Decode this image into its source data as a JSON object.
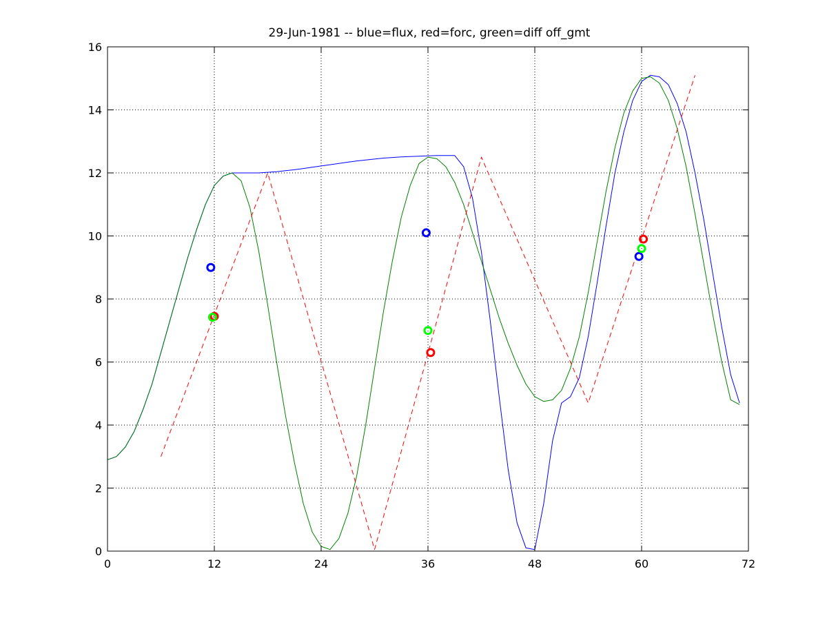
{
  "chart_data": {
    "type": "line",
    "title": "29-Jun-1981 -- blue=flux, red=forc, green=diff off_gmt",
    "xlabel": "",
    "ylabel": "",
    "xlim": [
      0,
      72
    ],
    "ylim": [
      0,
      16
    ],
    "xticks": [
      0,
      12,
      24,
      36,
      48,
      60,
      72
    ],
    "yticks": [
      0,
      2,
      4,
      6,
      8,
      10,
      12,
      14,
      16
    ],
    "grid": true,
    "colors": {
      "flux": "#0000ff",
      "forc": "#ff0000",
      "diff": "#008000",
      "diff_marker": "#00ff00"
    },
    "series": [
      {
        "key": "flux",
        "style": "solid",
        "x": [
          0,
          1,
          2,
          3,
          4,
          5,
          6,
          7,
          8,
          9,
          10,
          11,
          12,
          13,
          14,
          15,
          16,
          17,
          18,
          19,
          20,
          21,
          22,
          23,
          24,
          25,
          26,
          27,
          28,
          29,
          30,
          31,
          32,
          33,
          34,
          35,
          36,
          37,
          38,
          39,
          40,
          41,
          42,
          43,
          44,
          45,
          46,
          47,
          48,
          49,
          50,
          51,
          52,
          53,
          54,
          55,
          56,
          57,
          58,
          59,
          60,
          61,
          62,
          63,
          64,
          65,
          66,
          67,
          68,
          69,
          70,
          71
        ],
        "y": [
          2.9,
          3.0,
          3.3,
          3.8,
          4.5,
          5.3,
          6.3,
          7.3,
          8.3,
          9.3,
          10.2,
          11.0,
          11.6,
          11.9,
          12.0,
          12.0,
          12.0,
          12.0,
          12.02,
          12.04,
          12.07,
          12.1,
          12.14,
          12.18,
          12.22,
          12.26,
          12.3,
          12.34,
          12.38,
          12.41,
          12.44,
          12.47,
          12.49,
          12.51,
          12.52,
          12.53,
          12.54,
          12.55,
          12.55,
          12.55,
          12.2,
          11.2,
          9.5,
          7.3,
          4.9,
          2.6,
          0.9,
          0.1,
          0.05,
          1.5,
          3.5,
          4.7,
          4.9,
          5.5,
          6.8,
          8.5,
          10.3,
          12.0,
          13.3,
          14.3,
          14.9,
          15.1,
          15.05,
          14.8,
          14.2,
          13.3,
          12.0,
          10.5,
          8.8,
          7.1,
          5.6,
          4.7
        ]
      },
      {
        "key": "diff",
        "style": "solid",
        "x": [
          0,
          1,
          2,
          3,
          4,
          5,
          6,
          7,
          8,
          9,
          10,
          11,
          12,
          13,
          14,
          15,
          16,
          17,
          18,
          19,
          20,
          21,
          22,
          23,
          24,
          25,
          26,
          27,
          28,
          29,
          30,
          31,
          32,
          33,
          34,
          35,
          36,
          37,
          38,
          39,
          40,
          41,
          42,
          43,
          44,
          45,
          46,
          47,
          48,
          49,
          50,
          51,
          52,
          53,
          54,
          55,
          56,
          57,
          58,
          59,
          60,
          61,
          62,
          63,
          64,
          65,
          66,
          67,
          68,
          69,
          70,
          71
        ],
        "y": [
          2.9,
          3.0,
          3.3,
          3.8,
          4.5,
          5.3,
          6.3,
          7.3,
          8.3,
          9.3,
          10.2,
          11.0,
          11.6,
          11.9,
          12.0,
          11.75,
          10.9,
          9.5,
          7.8,
          6.0,
          4.3,
          2.8,
          1.5,
          0.6,
          0.15,
          0.05,
          0.4,
          1.2,
          2.4,
          4.0,
          5.8,
          7.6,
          9.2,
          10.6,
          11.6,
          12.3,
          12.5,
          12.45,
          12.2,
          11.7,
          11.0,
          10.1,
          9.2,
          8.3,
          7.4,
          6.6,
          5.9,
          5.3,
          4.9,
          4.75,
          4.8,
          5.1,
          5.8,
          6.8,
          8.2,
          9.8,
          11.4,
          12.8,
          13.9,
          14.6,
          15.0,
          15.05,
          14.85,
          14.3,
          13.4,
          12.2,
          10.7,
          9.1,
          7.5,
          6.0,
          4.8,
          4.65
        ]
      },
      {
        "key": "forc",
        "style": "dashed",
        "x": [
          6,
          18,
          30,
          42,
          54,
          66
        ],
        "y": [
          3.0,
          12.0,
          0.05,
          12.5,
          4.7,
          15.1
        ]
      }
    ],
    "markers": [
      {
        "series": "flux",
        "x": 11.6,
        "y": 9.0
      },
      {
        "series": "forc",
        "x": 12.0,
        "y": 7.45
      },
      {
        "series": "diff",
        "x": 11.8,
        "y": 7.42
      },
      {
        "series": "flux",
        "x": 35.8,
        "y": 10.1
      },
      {
        "series": "forc",
        "x": 36.3,
        "y": 6.3
      },
      {
        "series": "diff",
        "x": 36.0,
        "y": 7.0
      },
      {
        "series": "flux",
        "x": 59.7,
        "y": 9.35
      },
      {
        "series": "forc",
        "x": 60.2,
        "y": 9.9
      },
      {
        "series": "diff",
        "x": 60.0,
        "y": 9.6
      }
    ]
  }
}
